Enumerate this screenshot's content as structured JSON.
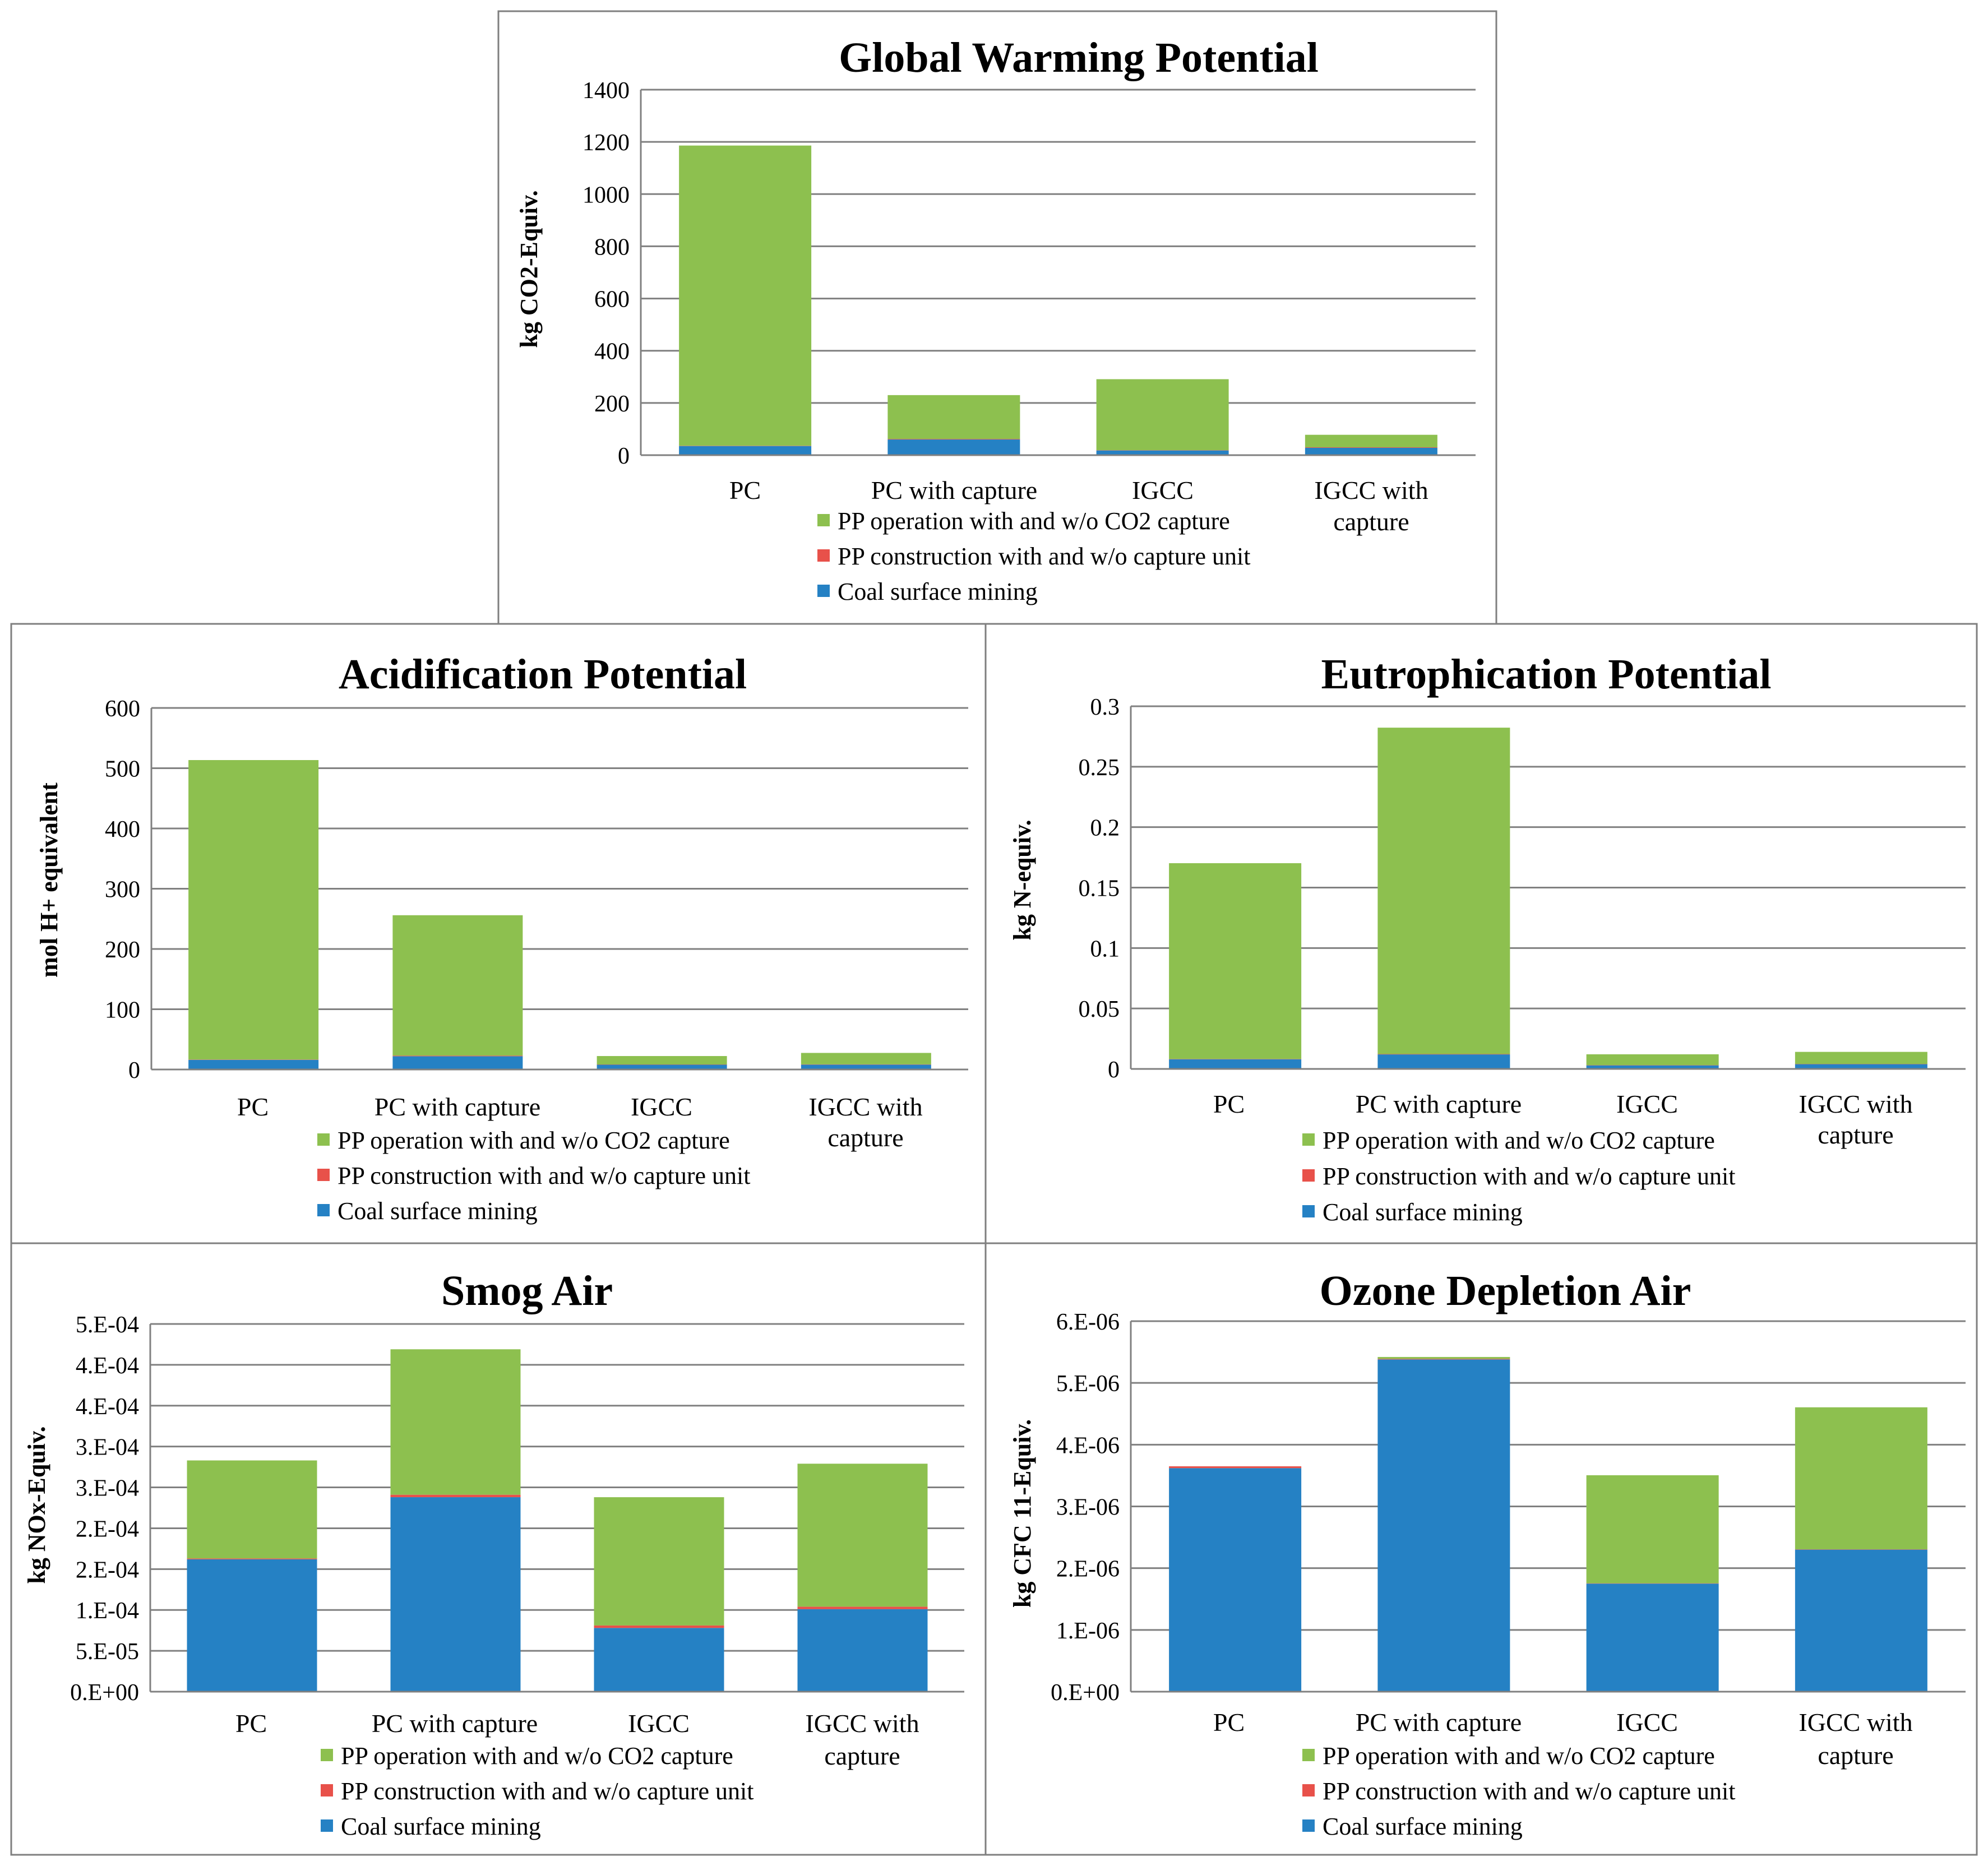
{
  "colors": {
    "operation": "#8DC04F",
    "construction": "#E8514A",
    "mining": "#2581C4",
    "grid": "#808080",
    "frame": "#7F7F7F",
    "text": "#000000"
  },
  "legend_labels": [
    "PP operation with and w/o CO2 capture",
    "PP construction with and w/o capture unit",
    "Coal surface mining"
  ],
  "chart_data": [
    {
      "id": "gwp",
      "type": "bar",
      "stacked": true,
      "title": "Global Warming Potential",
      "ylabel": "kg CO2-Equiv.",
      "categories": [
        "PC",
        "PC with capture",
        "IGCC",
        "IGCC with capture"
      ],
      "category_lines": [
        [
          "PC"
        ],
        [
          "PC with capture"
        ],
        [
          "IGCC"
        ],
        [
          "IGCC with",
          "capture"
        ]
      ],
      "ylim": [
        0,
        1400
      ],
      "yticks": [
        0,
        200,
        400,
        600,
        800,
        1000,
        1200,
        1400
      ],
      "ytick_labels": [
        "0",
        "200",
        "400",
        "600",
        "800",
        "1000",
        "1200",
        "1400"
      ],
      "series": [
        {
          "name": "Coal surface mining",
          "key": "mining",
          "values": [
            35,
            60,
            18,
            28
          ]
        },
        {
          "name": "PP construction with and w/o capture unit",
          "key": "construction",
          "values": [
            1,
            2,
            1,
            2
          ]
        },
        {
          "name": "PP operation with and w/o CO2 capture",
          "key": "operation",
          "values": [
            1150,
            168,
            272,
            48
          ]
        }
      ]
    },
    {
      "id": "ap",
      "type": "bar",
      "stacked": true,
      "title": "Acidification  Potential",
      "ylabel": "mol H+ equivalent",
      "categories": [
        "PC",
        "PC with capture",
        "IGCC",
        "IGCC with capture"
      ],
      "category_lines": [
        [
          "PC"
        ],
        [
          "PC with capture"
        ],
        [
          "IGCC"
        ],
        [
          "IGCC with",
          "capture"
        ]
      ],
      "ylim": [
        0,
        600
      ],
      "yticks": [
        0,
        100,
        200,
        300,
        400,
        500,
        600
      ],
      "ytick_labels": [
        "0",
        "100",
        "200",
        "300",
        "400",
        "500",
        "600"
      ],
      "series": [
        {
          "name": "Coal surface mining",
          "key": "mining",
          "values": [
            16,
            22,
            8,
            8
          ]
        },
        {
          "name": "PP construction with and w/o capture unit",
          "key": "construction",
          "values": [
            0.5,
            1,
            0.3,
            0.5
          ]
        },
        {
          "name": "PP operation with and w/o CO2 capture",
          "key": "operation",
          "values": [
            497,
            233,
            14,
            19
          ]
        }
      ]
    },
    {
      "id": "ep",
      "type": "bar",
      "stacked": true,
      "title": "Eutrophication  Potential",
      "ylabel": "kg N-equiv.",
      "categories": [
        "PC",
        "PC with capture",
        "IGCC",
        "IGCC with capture"
      ],
      "category_lines": [
        [
          "PC"
        ],
        [
          "PC with capture"
        ],
        [
          "IGCC"
        ],
        [
          "IGCC with",
          "capture"
        ]
      ],
      "ylim": [
        0,
        0.3
      ],
      "yticks": [
        0,
        0.05,
        0.1,
        0.15,
        0.2,
        0.25,
        0.3
      ],
      "ytick_labels": [
        "0",
        "0.05",
        "0.1",
        "0.15",
        "0.2",
        "0.25",
        "0.3"
      ],
      "series": [
        {
          "name": "Coal surface mining",
          "key": "mining",
          "values": [
            0.008,
            0.012,
            0.003,
            0.004
          ]
        },
        {
          "name": "PP construction with and w/o capture unit",
          "key": "construction",
          "values": [
            0.0002,
            0.0003,
            0.0001,
            0.0001
          ]
        },
        {
          "name": "PP operation with and w/o CO2 capture",
          "key": "operation",
          "values": [
            0.162,
            0.27,
            0.009,
            0.01
          ]
        }
      ]
    },
    {
      "id": "smog",
      "type": "bar",
      "stacked": true,
      "title": "Smog Air",
      "ylabel": "kg NOx-Equiv.",
      "categories": [
        "PC",
        "PC with capture",
        "IGCC",
        "IGCC with capture"
      ],
      "category_lines": [
        [
          "PC"
        ],
        [
          "PC with capture"
        ],
        [
          "IGCC"
        ],
        [
          "IGCC with",
          "capture"
        ]
      ],
      "ylim": [
        0,
        0.00045
      ],
      "yticks": [
        0,
        5e-05,
        0.0001,
        0.00015,
        0.0002,
        0.00025,
        0.0003,
        0.00035,
        0.0004,
        0.00045
      ],
      "ytick_labels": [
        "0.E+00",
        "5.E-05",
        "1.E-04",
        "2.E-04",
        "2.E-04",
        "3.E-04",
        "3.E-04",
        "4.E-04",
        "4.E-04",
        "5.E-04"
      ],
      "series": [
        {
          "name": "Coal surface mining",
          "key": "mining",
          "values": [
            0.000162,
            0.000238,
            7.8e-05,
            0.000101
          ]
        },
        {
          "name": "PP construction with and w/o capture unit",
          "key": "construction",
          "values": [
            1e-06,
            3e-06,
            3e-06,
            3e-06
          ]
        },
        {
          "name": "PP operation with and w/o CO2 capture",
          "key": "operation",
          "values": [
            0.00012,
            0.000178,
            0.000157,
            0.000175
          ]
        }
      ]
    },
    {
      "id": "ozone",
      "type": "bar",
      "stacked": true,
      "title": "Ozone Depletion Air",
      "ylabel": "kg CFC 11-Equiv.",
      "categories": [
        "PC",
        "PC with capture",
        "IGCC",
        "IGCC with capture"
      ],
      "category_lines": [
        [
          "PC"
        ],
        [
          "PC with capture"
        ],
        [
          "IGCC"
        ],
        [
          "IGCC with",
          "capture"
        ]
      ],
      "ylim": [
        0,
        6e-06
      ],
      "yticks": [
        0,
        1e-06,
        2e-06,
        3e-06,
        4e-06,
        5e-06,
        6e-06
      ],
      "ytick_labels": [
        "0.E+00",
        "1.E-06",
        "2.E-06",
        "3.E-06",
        "4.E-06",
        "5.E-06",
        "6.E-06"
      ],
      "series": [
        {
          "name": "Coal surface mining",
          "key": "mining",
          "values": [
            3.62e-06,
            5.38e-06,
            1.75e-06,
            2.3e-06
          ]
        },
        {
          "name": "PP construction with and w/o capture unit",
          "key": "construction",
          "values": [
            3e-08,
            1e-08,
            5e-09,
            5e-09
          ]
        },
        {
          "name": "PP operation with and w/o CO2 capture",
          "key": "operation",
          "values": [
            0.0,
            3e-08,
            1.75e-06,
            2.3e-06
          ]
        }
      ]
    }
  ]
}
